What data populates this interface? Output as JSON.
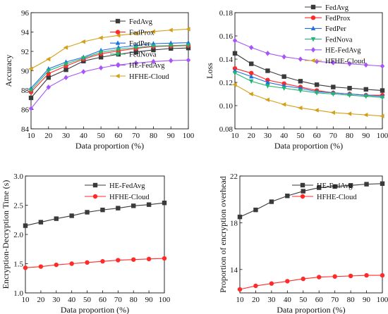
{
  "chart_data": [
    {
      "type": "line",
      "xlabel": "Data proportion (%)",
      "ylabel": "Accuracy",
      "x": [
        10,
        20,
        30,
        40,
        50,
        60,
        70,
        80,
        90,
        100
      ],
      "xlim": [
        10,
        100
      ],
      "xticks": [
        10,
        20,
        30,
        40,
        50,
        60,
        70,
        80,
        90,
        100
      ],
      "ylim": [
        84,
        96
      ],
      "yticks": [
        84,
        86,
        88,
        90,
        92,
        94,
        96
      ],
      "ytick_labels": [
        "84",
        "86",
        "88",
        "90",
        "92",
        "94",
        "96"
      ],
      "legend_position": "lower-right",
      "series": [
        {
          "name": "FedAvg",
          "color": "#3a3a3a",
          "marker": "square",
          "values": [
            87.2,
            89.3,
            90.1,
            91.0,
            91.4,
            91.7,
            91.95,
            92.15,
            92.3,
            92.35
          ]
        },
        {
          "name": "FedProx",
          "color": "#ff2a2a",
          "marker": "circle",
          "values": [
            87.8,
            89.7,
            90.5,
            91.2,
            91.75,
            92.05,
            92.3,
            92.5,
            92.55,
            92.6
          ]
        },
        {
          "name": "FedPer",
          "color": "#1f6fe0",
          "marker": "triangle-up",
          "values": [
            88.2,
            90.2,
            90.9,
            91.4,
            92.1,
            92.4,
            92.6,
            92.8,
            92.85,
            92.9
          ]
        },
        {
          "name": "FedNova",
          "color": "#22b573",
          "marker": "triangle-down",
          "values": [
            88.0,
            90.0,
            90.7,
            91.3,
            91.9,
            92.2,
            92.4,
            92.55,
            92.6,
            92.65
          ]
        },
        {
          "name": "HE-FedAvg",
          "color": "#a855f7",
          "marker": "diamond",
          "values": [
            86.1,
            88.3,
            89.3,
            89.9,
            90.3,
            90.6,
            90.8,
            90.95,
            91.05,
            91.1
          ]
        },
        {
          "name": "HFHE-Cloud",
          "color": "#d4a017",
          "marker": "triangle-left",
          "values": [
            90.2,
            91.2,
            92.4,
            93.0,
            93.4,
            93.65,
            93.85,
            94.05,
            94.2,
            94.3
          ]
        }
      ]
    },
    {
      "type": "line",
      "xlabel": "Data proportion (%)",
      "ylabel": "Loss",
      "x": [
        10,
        20,
        30,
        40,
        50,
        60,
        70,
        80,
        90,
        100
      ],
      "xlim": [
        10,
        100
      ],
      "xticks": [
        10,
        20,
        30,
        40,
        50,
        60,
        70,
        80,
        90,
        100
      ],
      "ylim": [
        0.08,
        0.18
      ],
      "yticks": [
        0.08,
        0.1,
        0.12,
        0.14,
        0.16,
        0.18
      ],
      "ytick_labels": [
        "0.08",
        "0.10",
        "0.12",
        "0.14",
        "0.16",
        "0.18"
      ],
      "legend_position": "top-right",
      "series": [
        {
          "name": "FedAvg",
          "color": "#3a3a3a",
          "marker": "square",
          "values": [
            0.145,
            0.136,
            0.13,
            0.125,
            0.121,
            0.118,
            0.116,
            0.115,
            0.114,
            0.113
          ]
        },
        {
          "name": "FedProx",
          "color": "#ff2a2a",
          "marker": "circle",
          "values": [
            0.132,
            0.128,
            0.122,
            0.119,
            0.116,
            0.113,
            0.111,
            0.11,
            0.109,
            0.109
          ]
        },
        {
          "name": "FedPer",
          "color": "#1f6fe0",
          "marker": "triangle-up",
          "values": [
            0.13,
            0.125,
            0.12,
            0.117,
            0.115,
            0.112,
            0.111,
            0.11,
            0.109,
            0.108
          ]
        },
        {
          "name": "FedNova",
          "color": "#22b573",
          "marker": "triangle-down",
          "values": [
            0.128,
            0.121,
            0.117,
            0.115,
            0.113,
            0.111,
            0.11,
            0.109,
            0.108,
            0.107
          ]
        },
        {
          "name": "HE-FedAvg",
          "color": "#a855f7",
          "marker": "diamond",
          "values": [
            0.156,
            0.15,
            0.145,
            0.142,
            0.14,
            0.138,
            0.137,
            0.136,
            0.135,
            0.134
          ]
        },
        {
          "name": "HFHE-Cloud",
          "color": "#d4a017",
          "marker": "triangle-left",
          "values": [
            0.118,
            0.11,
            0.105,
            0.101,
            0.098,
            0.096,
            0.094,
            0.093,
            0.092,
            0.091
          ]
        }
      ]
    },
    {
      "type": "line",
      "xlabel": "Data proportion (%)",
      "ylabel": "Encryption-Decryption Time (s)",
      "x": [
        10,
        20,
        30,
        40,
        50,
        60,
        70,
        80,
        90,
        100
      ],
      "xlim": [
        10,
        100
      ],
      "xticks": [
        10,
        20,
        30,
        40,
        50,
        60,
        70,
        80,
        90,
        100
      ],
      "ylim": [
        1.0,
        3.0
      ],
      "yticks": [
        1.0,
        1.5,
        2.0,
        2.5,
        3.0
      ],
      "ytick_labels": [
        "1.0",
        "1.5",
        "2.0",
        "2.5",
        "3.0"
      ],
      "legend_position": "top-right",
      "series": [
        {
          "name": "HE-FedAvg",
          "color": "#3a3a3a",
          "marker": "square",
          "values": [
            2.15,
            2.21,
            2.27,
            2.32,
            2.38,
            2.42,
            2.45,
            2.49,
            2.51,
            2.54
          ]
        },
        {
          "name": "HFHE-Cloud",
          "color": "#ff2a2a",
          "marker": "circle",
          "values": [
            1.43,
            1.45,
            1.48,
            1.5,
            1.52,
            1.54,
            1.56,
            1.57,
            1.58,
            1.59
          ]
        }
      ]
    },
    {
      "type": "line",
      "xlabel": "Data proportion (%)",
      "ylabel": "Proportion of encryption overhead",
      "x": [
        10,
        20,
        30,
        40,
        50,
        60,
        70,
        80,
        90,
        100
      ],
      "xlim": [
        10,
        100
      ],
      "xticks": [
        10,
        20,
        30,
        40,
        50,
        60,
        70,
        80,
        90,
        100
      ],
      "ylim": [
        12,
        22
      ],
      "yticks": [
        14,
        18,
        22
      ],
      "ytick_labels": [
        "14",
        "18",
        "22"
      ],
      "legend_position": "top-right",
      "series": [
        {
          "name": "HE-FedAvg",
          "color": "#3a3a3a",
          "marker": "square",
          "values": [
            18.5,
            19.1,
            19.8,
            20.3,
            20.7,
            21.0,
            21.1,
            21.2,
            21.3,
            21.35
          ]
        },
        {
          "name": "HFHE-Cloud",
          "color": "#ff2a2a",
          "marker": "circle",
          "values": [
            12.3,
            12.6,
            12.8,
            13.0,
            13.2,
            13.35,
            13.4,
            13.45,
            13.5,
            13.5
          ]
        }
      ]
    }
  ]
}
